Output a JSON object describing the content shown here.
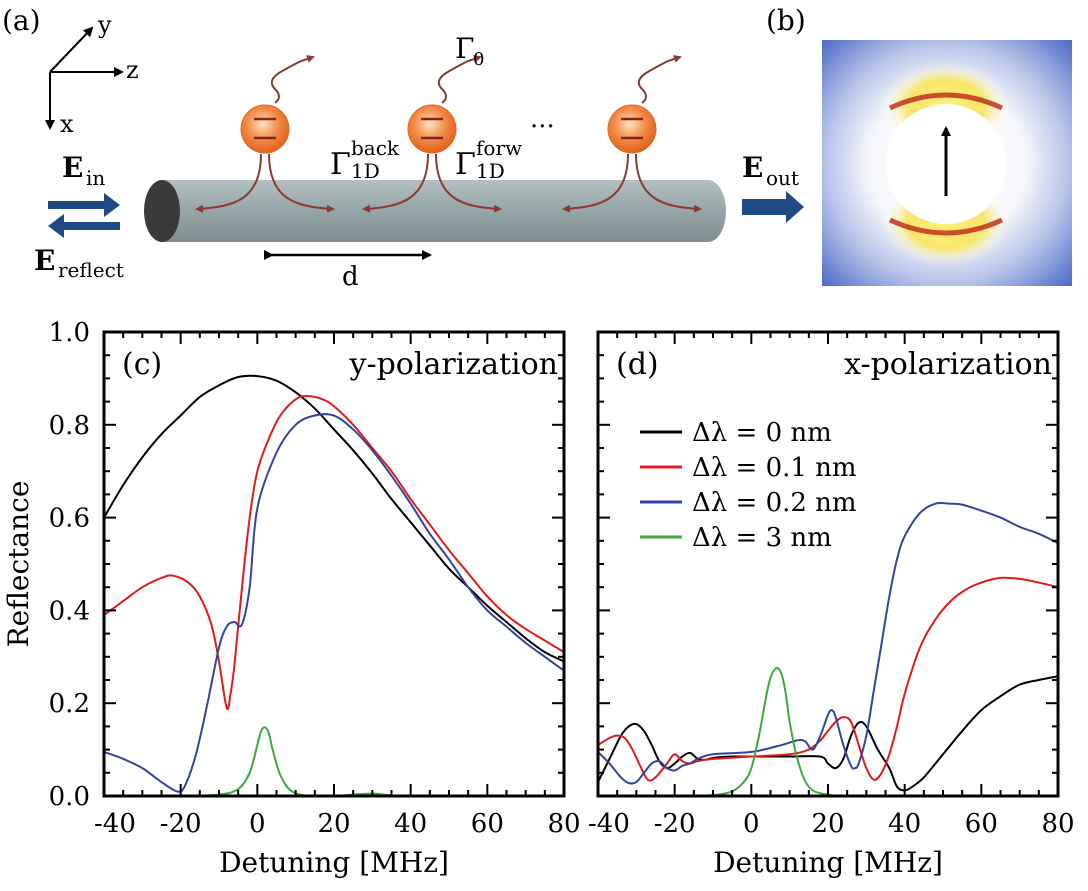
{
  "panels": {
    "a": {
      "label": "(a)"
    },
    "b": {
      "label": "(b)"
    }
  },
  "schematic": {
    "axis_y": "y",
    "axis_z": "z",
    "axis_x": "x",
    "gamma0_base": "Γ",
    "gamma0_sub": "0",
    "gamma_back_base": "Γ",
    "gamma_back_sup": "back",
    "gamma_back_sub": "1D",
    "gamma_forw_base": "Γ",
    "gamma_forw_sup": "forw",
    "gamma_forw_sub": "1D",
    "ellipsis": "···",
    "e_in_base": "E",
    "e_in_sub": "in",
    "e_reflect_base": "E",
    "e_reflect_sub": "reflect",
    "e_out_base": "E",
    "e_out_sub": "out",
    "spacing_label": "d"
  },
  "colors": {
    "fiber": "#96a5a8",
    "fiber_end": "#3a3a3a",
    "atom": "#f07d36",
    "decay_arrow": "#8a3a32",
    "field_arrow": "#1f4a85",
    "black": "#000000",
    "red": "#e01b1b",
    "blue": "#3344a0",
    "green": "#3caa3c"
  },
  "chart_data": [
    {
      "type": "line",
      "panel_label": "(c)",
      "title": "y-polarization",
      "xlabel": "Detuning [MHz]",
      "ylabel": "Reflectance",
      "xlim": [
        -40,
        80
      ],
      "ylim": [
        0,
        1.0
      ],
      "xticks": [
        -40,
        -20,
        0,
        20,
        40,
        60,
        80
      ],
      "xtick_labels": [
        "-40",
        "-20",
        "0",
        "20",
        "40",
        "60",
        "80"
      ],
      "yticks": [
        0,
        0.2,
        0.4,
        0.6,
        0.8,
        1.0
      ],
      "ytick_labels": [
        "0.0",
        "0.2",
        "0.4",
        "0.6",
        "0.8",
        "1.0"
      ],
      "series": [
        {
          "name": "Δλ = 0 nm",
          "color": "#000000",
          "x": [
            -40,
            -35,
            -30,
            -25,
            -20,
            -15,
            -10,
            -5,
            0,
            5,
            10,
            15,
            20,
            25,
            30,
            35,
            40,
            45,
            50,
            55,
            60,
            65,
            70,
            75,
            80
          ],
          "y": [
            0.6,
            0.67,
            0.73,
            0.78,
            0.82,
            0.86,
            0.885,
            0.903,
            0.905,
            0.895,
            0.87,
            0.835,
            0.79,
            0.745,
            0.695,
            0.64,
            0.59,
            0.54,
            0.49,
            0.45,
            0.41,
            0.375,
            0.34,
            0.31,
            0.29
          ]
        },
        {
          "name": "Δλ = 0.1 nm",
          "color": "#e01b1b",
          "x": [
            -40,
            -35,
            -30,
            -25,
            -22,
            -18,
            -15,
            -12,
            -10,
            -8,
            -7,
            -6,
            -4,
            -2,
            0,
            3,
            6,
            10,
            13,
            17,
            20,
            25,
            30,
            35,
            40,
            45,
            50,
            55,
            60,
            65,
            70,
            75,
            80
          ],
          "y": [
            0.39,
            0.42,
            0.45,
            0.47,
            0.475,
            0.46,
            0.43,
            0.37,
            0.29,
            0.19,
            0.22,
            0.28,
            0.45,
            0.6,
            0.7,
            0.77,
            0.82,
            0.855,
            0.862,
            0.855,
            0.84,
            0.8,
            0.75,
            0.7,
            0.64,
            0.585,
            0.53,
            0.48,
            0.43,
            0.39,
            0.36,
            0.335,
            0.31
          ]
        },
        {
          "name": "Δλ = 0.2 nm",
          "color": "#3344a0",
          "x": [
            -40,
            -35,
            -30,
            -25,
            -21,
            -19,
            -16,
            -13,
            -10,
            -8,
            -6,
            -4,
            -2,
            0,
            5,
            10,
            15,
            20,
            25,
            30,
            35,
            40,
            45,
            50,
            55,
            60,
            65,
            70,
            75,
            80
          ],
          "y": [
            0.095,
            0.08,
            0.06,
            0.03,
            0.01,
            0.02,
            0.09,
            0.2,
            0.32,
            0.365,
            0.375,
            0.37,
            0.45,
            0.62,
            0.74,
            0.8,
            0.82,
            0.82,
            0.79,
            0.745,
            0.69,
            0.63,
            0.565,
            0.51,
            0.45,
            0.4,
            0.365,
            0.33,
            0.3,
            0.27
          ]
        },
        {
          "name": "Δλ = 3 nm",
          "color": "#3caa3c",
          "x": [
            -40,
            -20,
            -10,
            -5,
            -2,
            0,
            1,
            2,
            3,
            4,
            6,
            9,
            14,
            20,
            30,
            40,
            80
          ],
          "y": [
            0.0,
            0.0,
            0.003,
            0.015,
            0.05,
            0.11,
            0.14,
            0.148,
            0.135,
            0.1,
            0.045,
            0.01,
            0.0,
            0.0,
            0.005,
            0.0,
            0.0
          ]
        }
      ]
    },
    {
      "type": "line",
      "panel_label": "(d)",
      "title": "x-polarization",
      "xlabel": "Detuning [MHz]",
      "ylabel": "",
      "xlim": [
        -40,
        80
      ],
      "ylim": [
        0,
        1.0
      ],
      "xticks": [
        -40,
        -20,
        0,
        20,
        40,
        60,
        80
      ],
      "xtick_labels": [
        "-40",
        "-20",
        "0",
        "20",
        "40",
        "60",
        "80"
      ],
      "yticks": [
        0,
        0.2,
        0.4,
        0.6,
        0.8,
        1.0
      ],
      "legend_position": "upper-left",
      "series": [
        {
          "name": "Δλ = 0 nm",
          "color": "#000000",
          "x": [
            -40,
            -37,
            -34,
            -32,
            -30,
            -28,
            -26,
            -24,
            -22,
            -20,
            -18,
            -16,
            -14,
            -12,
            -10,
            -5,
            0,
            10,
            18,
            20,
            22,
            24,
            26,
            28,
            30,
            33,
            36,
            38,
            40,
            42,
            45,
            50,
            55,
            60,
            65,
            70,
            75,
            80
          ],
          "y": [
            0.03,
            0.08,
            0.13,
            0.15,
            0.155,
            0.14,
            0.11,
            0.075,
            0.06,
            0.07,
            0.085,
            0.093,
            0.08,
            0.078,
            0.082,
            0.085,
            0.085,
            0.085,
            0.085,
            0.07,
            0.06,
            0.08,
            0.13,
            0.158,
            0.15,
            0.1,
            0.06,
            0.02,
            0.012,
            0.02,
            0.04,
            0.09,
            0.14,
            0.185,
            0.215,
            0.24,
            0.25,
            0.258
          ]
        },
        {
          "name": "Δλ = 0.1 nm",
          "color": "#e01b1b",
          "x": [
            -40,
            -37,
            -35,
            -33,
            -31,
            -29,
            -27,
            -25,
            -22,
            -20,
            -18,
            -16,
            -14,
            -10,
            0,
            10,
            15,
            18,
            20,
            22,
            24,
            26,
            28,
            30,
            32,
            34,
            36,
            38,
            40,
            44,
            48,
            52,
            56,
            60,
            65,
            70,
            75,
            80
          ],
          "y": [
            0.11,
            0.125,
            0.13,
            0.125,
            0.1,
            0.065,
            0.035,
            0.04,
            0.07,
            0.09,
            0.075,
            0.07,
            0.075,
            0.08,
            0.085,
            0.09,
            0.1,
            0.12,
            0.14,
            0.16,
            0.17,
            0.16,
            0.11,
            0.06,
            0.035,
            0.05,
            0.09,
            0.15,
            0.22,
            0.32,
            0.38,
            0.42,
            0.445,
            0.46,
            0.47,
            0.468,
            0.46,
            0.45
          ]
        },
        {
          "name": "Δλ = 0.2 nm",
          "color": "#3344a0",
          "x": [
            -40,
            -37,
            -34,
            -32,
            -30,
            -28,
            -26,
            -24,
            -22,
            -20,
            -18,
            -16,
            -14,
            -10,
            0,
            8,
            12,
            14,
            16,
            18,
            20,
            21,
            22,
            24,
            26,
            27,
            28,
            30,
            32,
            34,
            36,
            38,
            40,
            44,
            48,
            52,
            55,
            60,
            65,
            70,
            75,
            80
          ],
          "y": [
            0.095,
            0.07,
            0.04,
            0.028,
            0.03,
            0.05,
            0.07,
            0.075,
            0.06,
            0.055,
            0.065,
            0.07,
            0.08,
            0.09,
            0.095,
            0.11,
            0.12,
            0.118,
            0.1,
            0.13,
            0.175,
            0.185,
            0.17,
            0.11,
            0.065,
            0.06,
            0.07,
            0.13,
            0.23,
            0.33,
            0.43,
            0.51,
            0.56,
            0.61,
            0.63,
            0.63,
            0.628,
            0.615,
            0.6,
            0.58,
            0.565,
            0.545
          ]
        },
        {
          "name": "Δλ = 3 nm",
          "color": "#3caa3c",
          "x": [
            -40,
            -20,
            -10,
            -5,
            -2,
            0,
            2,
            4,
            5,
            6,
            7,
            8,
            9,
            10,
            12,
            15,
            20,
            30,
            80
          ],
          "y": [
            0.0,
            0.0,
            0.002,
            0.01,
            0.03,
            0.06,
            0.13,
            0.22,
            0.255,
            0.272,
            0.275,
            0.26,
            0.22,
            0.16,
            0.08,
            0.02,
            0.003,
            0.0,
            0.0
          ]
        }
      ]
    }
  ]
}
